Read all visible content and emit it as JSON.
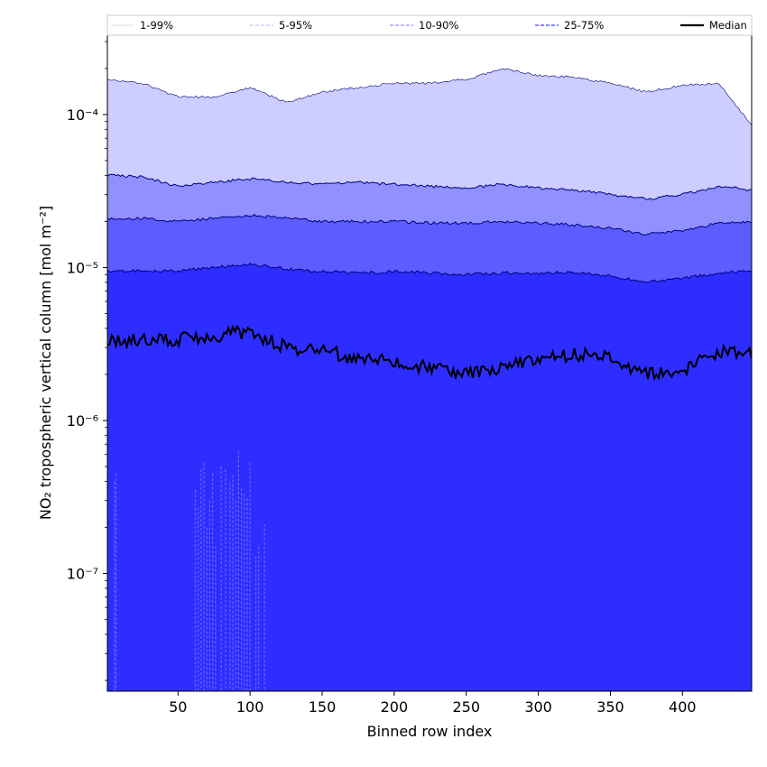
{
  "chart_data": {
    "type": "area",
    "xlabel": "Binned row index",
    "ylabel": "NO₂ tropospheric vertical column [mol m⁻²]",
    "xlim": [
      1,
      448
    ],
    "ylim": [
      1.7e-08,
      0.00033
    ],
    "yscale": "log",
    "x_ticks": [
      50,
      100,
      150,
      200,
      250,
      300,
      350,
      400
    ],
    "y_ticks": [
      {
        "value": 1e-07,
        "label": "10⁻⁷"
      },
      {
        "value": 1e-06,
        "label": "10⁻⁶"
      },
      {
        "value": 1e-05,
        "label": "10⁻⁵"
      },
      {
        "value": 0.0001,
        "label": "10⁻⁴"
      }
    ],
    "x": [
      1,
      25,
      50,
      75,
      100,
      125,
      150,
      175,
      200,
      225,
      250,
      275,
      300,
      325,
      350,
      375,
      400,
      425,
      448
    ],
    "series": [
      {
        "name": "1-99%",
        "upper": [
          0.00017,
          0.00016,
          0.00013,
          0.00013,
          0.00015,
          0.00012,
          0.00014,
          0.00015,
          0.00016,
          0.00016,
          0.00017,
          0.0002,
          0.00018,
          0.000175,
          0.00016,
          0.00014,
          0.000155,
          0.00016,
          8.5e-05
        ],
        "lower": [
          1.7e-08,
          1.7e-08,
          1.7e-08,
          1.7e-08,
          1.7e-08,
          1.7e-08,
          1.7e-08,
          1.7e-08,
          1.7e-08,
          1.7e-08,
          1.7e-08,
          1.7e-08,
          1.7e-08,
          1.7e-08,
          1.7e-08,
          1.7e-08,
          1.7e-08,
          1.7e-08,
          1.7e-08
        ]
      },
      {
        "name": "5-95%",
        "upper": [
          4e-05,
          3.9e-05,
          3.4e-05,
          3.6e-05,
          3.8e-05,
          3.6e-05,
          3.5e-05,
          3.6e-05,
          3.5e-05,
          3.4e-05,
          3.3e-05,
          3.5e-05,
          3.3e-05,
          3.2e-05,
          3e-05,
          2.8e-05,
          3e-05,
          3.4e-05,
          3.2e-05
        ],
        "lower": [
          1.7e-08,
          1.7e-08,
          1.7e-08,
          1.7e-08,
          1.7e-08,
          1.7e-08,
          1.7e-08,
          1.7e-08,
          1.7e-08,
          1.7e-08,
          1.7e-08,
          1.7e-08,
          1.7e-08,
          1.7e-08,
          1.7e-08,
          1.7e-08,
          1.7e-08,
          1.7e-08,
          1.7e-08
        ]
      },
      {
        "name": "10-90%",
        "upper": [
          2.1e-05,
          2.1e-05,
          2e-05,
          2.1e-05,
          2.2e-05,
          2.1e-05,
          2e-05,
          2e-05,
          2e-05,
          1.95e-05,
          1.95e-05,
          2e-05,
          1.95e-05,
          1.9e-05,
          1.8e-05,
          1.65e-05,
          1.75e-05,
          1.95e-05,
          2e-05
        ],
        "lower": [
          1.7e-08,
          1.7e-08,
          1.7e-08,
          1.7e-08,
          1.7e-08,
          1.7e-08,
          1.7e-08,
          1.7e-08,
          1.7e-08,
          1.7e-08,
          1.7e-08,
          1.7e-08,
          1.7e-08,
          1.7e-08,
          1.7e-08,
          1.7e-08,
          1.7e-08,
          1.7e-08,
          1.7e-08
        ]
      },
      {
        "name": "25-75%",
        "upper": [
          9.5e-06,
          9.5e-06,
          9.5e-06,
          1e-05,
          1.05e-05,
          9.8e-06,
          9.4e-06,
          9.2e-06,
          9.4e-06,
          9.2e-06,
          9e-06,
          9.2e-06,
          9.2e-06,
          9.3e-06,
          8.8e-06,
          8e-06,
          8.5e-06,
          9.2e-06,
          9.5e-06
        ],
        "lower": [
          1.7e-08,
          1.7e-08,
          1.7e-08,
          1.7e-08,
          1.7e-08,
          1.7e-08,
          1.7e-08,
          1.7e-08,
          1.7e-08,
          1.7e-08,
          1.7e-08,
          1.7e-08,
          1.7e-08,
          1.7e-08,
          1.7e-08,
          1.7e-08,
          1.7e-08,
          1.7e-08,
          1.7e-08
        ]
      },
      {
        "name": "Median",
        "values": [
          3.4e-06,
          3.3e-06,
          3.4e-06,
          3.6e-06,
          3.8e-06,
          3e-06,
          2.9e-06,
          2.5e-06,
          2.4e-06,
          2.2e-06,
          2e-06,
          2.2e-06,
          2.5e-06,
          2.7e-06,
          2.6e-06,
          2e-06,
          2.1e-06,
          2.8e-06,
          2.8e-06
        ]
      }
    ],
    "lower_whiskers": [
      {
        "x": 6,
        "top": 4e-07
      },
      {
        "x": 7,
        "top": 4.5e-07
      },
      {
        "x": 62,
        "top": 3.5e-07
      },
      {
        "x": 64,
        "top": 2.7e-07
      },
      {
        "x": 66,
        "top": 4.8e-07
      },
      {
        "x": 68,
        "top": 5.3e-07
      },
      {
        "x": 70,
        "top": 2e-07
      },
      {
        "x": 72,
        "top": 3e-07
      },
      {
        "x": 74,
        "top": 4.5e-07
      },
      {
        "x": 76,
        "top": 1.5e-07
      },
      {
        "x": 80,
        "top": 5e-07
      },
      {
        "x": 83,
        "top": 4.8e-07
      },
      {
        "x": 86,
        "top": 3.9e-07
      },
      {
        "x": 88,
        "top": 4.4e-07
      },
      {
        "x": 90,
        "top": 3e-07
      },
      {
        "x": 92,
        "top": 6.3e-07
      },
      {
        "x": 94,
        "top": 3.6e-07
      },
      {
        "x": 96,
        "top": 3.3e-07
      },
      {
        "x": 98,
        "top": 3.1e-07
      },
      {
        "x": 100,
        "top": 5.3e-07
      },
      {
        "x": 104,
        "top": 1.3e-07
      },
      {
        "x": 106,
        "top": 1.5e-07
      },
      {
        "x": 110,
        "top": 2.1e-07
      }
    ],
    "legend_position": "top",
    "colors": {
      "band_1_99": "#cdcdff",
      "band_5_95": "#9090ff",
      "band_10_90": "#5c5cff",
      "band_25_75": "#2d2dff",
      "median": "#000000",
      "whisker": "#6666ff"
    }
  }
}
